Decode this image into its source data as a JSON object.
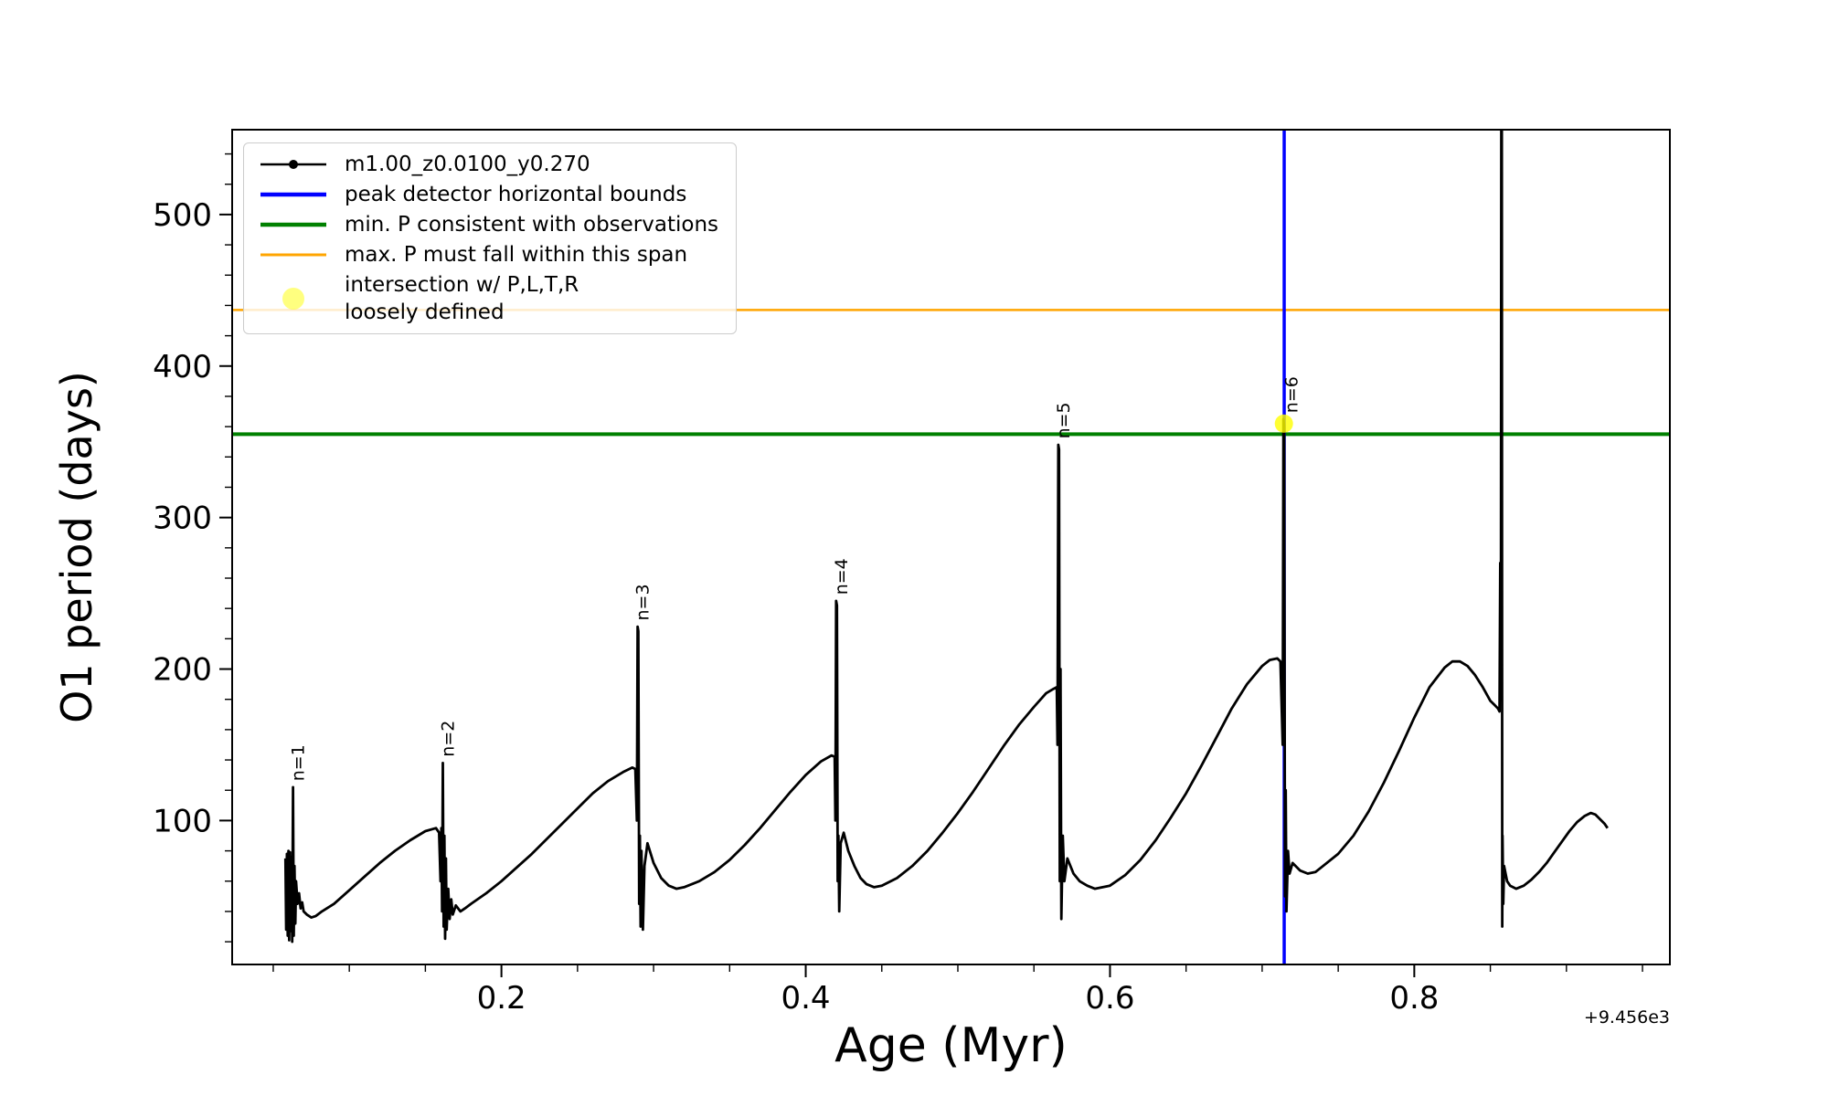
{
  "legend": {
    "entries": [
      {
        "label": "m1.00_z0.0100_y0.270",
        "color": "#000000",
        "style": "line-marker"
      },
      {
        "label": "peak detector horizontal bounds",
        "color": "#0000ff",
        "style": "line"
      },
      {
        "label": "min. P consistent with observations",
        "color": "#008000",
        "style": "line"
      },
      {
        "label": "max. P must fall within this span",
        "color": "#ffa500",
        "style": "line"
      },
      {
        "label": "intersection w/ P,L,T,R",
        "label2": "loosely defined",
        "color": "#ffff00",
        "style": "marker"
      }
    ]
  },
  "chart_data": {
    "type": "line",
    "title": "",
    "xlabel": "Age (Myr)",
    "ylabel": "O1 period (days)",
    "x_offset_label": "+9.456e3",
    "xlim": [
      0.023,
      0.968
    ],
    "ylim": [
      5,
      556
    ],
    "grid": false,
    "legend_position": "upper-left",
    "x_major_ticks": [
      0.2,
      0.4,
      0.6,
      0.8
    ],
    "x_tick_labels": [
      "0.2",
      "0.4",
      "0.6",
      "0.8"
    ],
    "y_major_ticks": [
      100,
      200,
      300,
      400,
      500
    ],
    "y_tick_labels": [
      "100",
      "200",
      "300",
      "400",
      "500"
    ],
    "x_minor_step": 0.05,
    "y_minor_step": 20,
    "main_series": {
      "name": "m1.00_z0.0100_y0.270",
      "color": "#000000",
      "marker": "point",
      "points": [
        [
          0.058,
          75
        ],
        [
          0.0585,
          28
        ],
        [
          0.059,
          78
        ],
        [
          0.0595,
          24
        ],
        [
          0.06,
          80
        ],
        [
          0.0605,
          21
        ],
        [
          0.061,
          79
        ],
        [
          0.0615,
          27
        ],
        [
          0.062,
          76
        ],
        [
          0.0625,
          20
        ],
        [
          0.063,
          122
        ],
        [
          0.0635,
          24
        ],
        [
          0.064,
          70
        ],
        [
          0.0645,
          32
        ],
        [
          0.065,
          60
        ],
        [
          0.066,
          45
        ],
        [
          0.067,
          52
        ],
        [
          0.068,
          42
        ],
        [
          0.069,
          46
        ],
        [
          0.07,
          40
        ],
        [
          0.072,
          38
        ],
        [
          0.075,
          36
        ],
        [
          0.078,
          37
        ],
        [
          0.082,
          40
        ],
        [
          0.09,
          45
        ],
        [
          0.1,
          54
        ],
        [
          0.11,
          63
        ],
        [
          0.12,
          72
        ],
        [
          0.13,
          80
        ],
        [
          0.14,
          87
        ],
        [
          0.15,
          93
        ],
        [
          0.157,
          95
        ],
        [
          0.159,
          92
        ],
        [
          0.16,
          60
        ],
        [
          0.1605,
          95
        ],
        [
          0.161,
          40
        ],
        [
          0.1615,
          138
        ],
        [
          0.162,
          30
        ],
        [
          0.1625,
          90
        ],
        [
          0.163,
          22
        ],
        [
          0.1635,
          75
        ],
        [
          0.164,
          28
        ],
        [
          0.165,
          55
        ],
        [
          0.166,
          35
        ],
        [
          0.167,
          48
        ],
        [
          0.168,
          38
        ],
        [
          0.17,
          44
        ],
        [
          0.173,
          40
        ],
        [
          0.176,
          42
        ],
        [
          0.18,
          45
        ],
        [
          0.19,
          52
        ],
        [
          0.2,
          60
        ],
        [
          0.21,
          69
        ],
        [
          0.22,
          78
        ],
        [
          0.23,
          88
        ],
        [
          0.24,
          98
        ],
        [
          0.25,
          108
        ],
        [
          0.26,
          118
        ],
        [
          0.27,
          126
        ],
        [
          0.28,
          132
        ],
        [
          0.286,
          135
        ],
        [
          0.288,
          134
        ],
        [
          0.289,
          100
        ],
        [
          0.2895,
          228
        ],
        [
          0.29,
          225
        ],
        [
          0.2905,
          45
        ],
        [
          0.291,
          90
        ],
        [
          0.2915,
          30
        ],
        [
          0.292,
          80
        ],
        [
          0.293,
          28
        ],
        [
          0.294,
          70
        ],
        [
          0.296,
          85
        ],
        [
          0.3,
          72
        ],
        [
          0.305,
          62
        ],
        [
          0.31,
          57
        ],
        [
          0.315,
          55
        ],
        [
          0.32,
          56
        ],
        [
          0.33,
          60
        ],
        [
          0.34,
          66
        ],
        [
          0.35,
          74
        ],
        [
          0.36,
          84
        ],
        [
          0.37,
          95
        ],
        [
          0.38,
          107
        ],
        [
          0.39,
          119
        ],
        [
          0.4,
          130
        ],
        [
          0.41,
          139
        ],
        [
          0.417,
          143
        ],
        [
          0.419,
          142
        ],
        [
          0.4195,
          100
        ],
        [
          0.42,
          245
        ],
        [
          0.4205,
          242
        ],
        [
          0.421,
          60
        ],
        [
          0.4215,
          90
        ],
        [
          0.422,
          40
        ],
        [
          0.423,
          85
        ],
        [
          0.425,
          92
        ],
        [
          0.428,
          80
        ],
        [
          0.432,
          70
        ],
        [
          0.436,
          62
        ],
        [
          0.44,
          58
        ],
        [
          0.445,
          56
        ],
        [
          0.45,
          57
        ],
        [
          0.46,
          62
        ],
        [
          0.47,
          70
        ],
        [
          0.48,
          80
        ],
        [
          0.49,
          92
        ],
        [
          0.5,
          105
        ],
        [
          0.51,
          119
        ],
        [
          0.52,
          134
        ],
        [
          0.53,
          149
        ],
        [
          0.54,
          163
        ],
        [
          0.55,
          175
        ],
        [
          0.558,
          184
        ],
        [
          0.563,
          187
        ],
        [
          0.565,
          188
        ],
        [
          0.5655,
          150
        ],
        [
          0.566,
          348
        ],
        [
          0.5665,
          345
        ],
        [
          0.567,
          60
        ],
        [
          0.5675,
          200
        ],
        [
          0.568,
          35
        ],
        [
          0.569,
          90
        ],
        [
          0.57,
          60
        ],
        [
          0.572,
          75
        ],
        [
          0.576,
          65
        ],
        [
          0.58,
          60
        ],
        [
          0.585,
          57
        ],
        [
          0.59,
          55
        ],
        [
          0.6,
          57
        ],
        [
          0.61,
          64
        ],
        [
          0.62,
          74
        ],
        [
          0.63,
          87
        ],
        [
          0.64,
          102
        ],
        [
          0.65,
          118
        ],
        [
          0.66,
          136
        ],
        [
          0.67,
          155
        ],
        [
          0.68,
          174
        ],
        [
          0.69,
          190
        ],
        [
          0.7,
          202
        ],
        [
          0.705,
          206
        ],
        [
          0.71,
          207
        ],
        [
          0.712,
          205
        ],
        [
          0.7135,
          150
        ],
        [
          0.714,
          365
        ],
        [
          0.7145,
          360
        ],
        [
          0.715,
          50
        ],
        [
          0.7155,
          120
        ],
        [
          0.716,
          40
        ],
        [
          0.717,
          80
        ],
        [
          0.718,
          65
        ],
        [
          0.72,
          72
        ],
        [
          0.725,
          67
        ],
        [
          0.73,
          65
        ],
        [
          0.735,
          66
        ],
        [
          0.74,
          70
        ],
        [
          0.75,
          78
        ],
        [
          0.76,
          90
        ],
        [
          0.77,
          106
        ],
        [
          0.78,
          125
        ],
        [
          0.79,
          146
        ],
        [
          0.8,
          168
        ],
        [
          0.81,
          188
        ],
        [
          0.82,
          201
        ],
        [
          0.825,
          205
        ],
        [
          0.83,
          205
        ],
        [
          0.835,
          202
        ],
        [
          0.84,
          196
        ],
        [
          0.845,
          188
        ],
        [
          0.85,
          179
        ],
        [
          0.853,
          176
        ],
        [
          0.855,
          174
        ],
        [
          0.856,
          172
        ],
        [
          0.8565,
          270
        ],
        [
          0.857,
          268
        ],
        [
          0.8572,
          610
        ],
        [
          0.8575,
          608
        ],
        [
          0.8578,
          30
        ],
        [
          0.858,
          90
        ],
        [
          0.8585,
          45
        ],
        [
          0.859,
          70
        ],
        [
          0.861,
          60
        ],
        [
          0.863,
          57
        ],
        [
          0.867,
          55
        ],
        [
          0.872,
          57
        ],
        [
          0.877,
          61
        ],
        [
          0.882,
          66
        ],
        [
          0.887,
          72
        ],
        [
          0.892,
          79
        ],
        [
          0.897,
          86
        ],
        [
          0.902,
          93
        ],
        [
          0.907,
          99
        ],
        [
          0.912,
          103
        ],
        [
          0.916,
          105
        ],
        [
          0.919,
          104
        ],
        [
          0.922,
          101
        ],
        [
          0.925,
          98
        ],
        [
          0.927,
          95
        ]
      ]
    },
    "vlines": [
      {
        "name": "peak detector horizontal bounds",
        "color": "#0000ff",
        "x": 0.7145,
        "linewidth": 3.5
      }
    ],
    "hlines": [
      {
        "name": "max. P must fall within this span",
        "color": "#ffa500",
        "y": 437,
        "linewidth": 2.5
      },
      {
        "name": "min. P consistent with observations",
        "color": "#008000",
        "y": 355,
        "linewidth": 4
      }
    ],
    "markers": [
      {
        "name": "intersection w/ P,L,T,R loosely defined",
        "color": "#ffff00",
        "opacity": 0.8,
        "x": 0.7143,
        "y": 362,
        "size": 10
      }
    ],
    "annotations": [
      {
        "text": "n=1",
        "x": 0.063,
        "y": 126,
        "rotation": 90
      },
      {
        "text": "n=2",
        "x": 0.1615,
        "y": 142,
        "rotation": 90
      },
      {
        "text": "n=3",
        "x": 0.2895,
        "y": 232,
        "rotation": 90
      },
      {
        "text": "n=4",
        "x": 0.42,
        "y": 249,
        "rotation": 90
      },
      {
        "text": "n=5",
        "x": 0.566,
        "y": 352,
        "rotation": 90
      },
      {
        "text": "n=6",
        "x": 0.716,
        "y": 369,
        "rotation": 90
      }
    ]
  }
}
